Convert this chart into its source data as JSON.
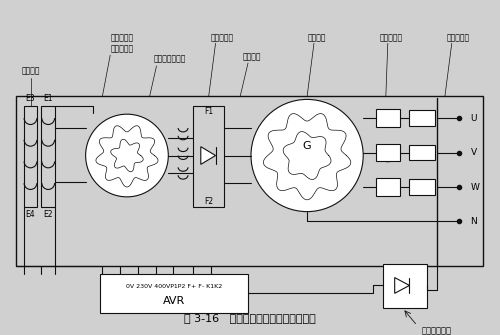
{
  "title": "图 3-16   无刷三相交流发电机原理电路",
  "bg_color": "#d0d0d0",
  "line_color": "#111111",
  "labels": {
    "fufubz": "复励绕组",
    "ljdjdz": "励磁机定子",
    "zljbz": "主励磁绕组",
    "ljdjkz": "励磁机电枢绕组",
    "xzzlq": "旋转整流器",
    "zzrz": "转子绕组",
    "dzbz": "定子绕组",
    "tclgq": "调差互感器",
    "fublq": "复励变流器",
    "AVR_label": "0V 230V 400VP1P2 F+ F- K1K2",
    "AVR": "AVR",
    "sxzlqz": "三相整流桥组",
    "E1": "E1",
    "E2": "E2",
    "E3": "E3",
    "E4": "E4",
    "F1": "F1",
    "F2": "F2",
    "G": "G",
    "U": "U",
    "V": "V",
    "W": "W",
    "N": "N"
  }
}
